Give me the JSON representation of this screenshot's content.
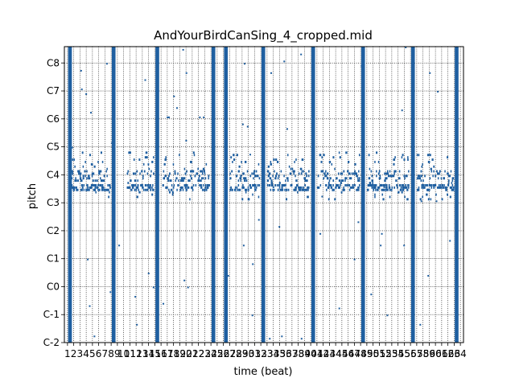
{
  "chart_data": {
    "type": "heatmap",
    "title": "AndYourBirdCanSing_4_cropped.mid",
    "xlabel": "time (beat)",
    "ylabel": "pitch",
    "xlim": [
      0.5,
      64.5
    ],
    "ylim": [
      0,
      127
    ],
    "x_ticks": [
      1,
      2,
      3,
      4,
      5,
      6,
      7,
      8,
      9,
      10,
      11,
      12,
      13,
      14,
      15,
      16,
      17,
      18,
      19,
      20,
      21,
      22,
      23,
      24,
      25,
      26,
      27,
      28,
      29,
      30,
      31,
      32,
      33,
      34,
      35,
      36,
      37,
      38,
      39,
      40,
      41,
      42,
      43,
      44,
      45,
      46,
      47,
      48,
      49,
      50,
      51,
      52,
      53,
      54,
      55,
      56,
      57,
      58,
      59,
      60,
      61,
      62,
      63,
      64
    ],
    "y_ticks": [
      {
        "pitch": 0,
        "label": "C-2"
      },
      {
        "pitch": 12,
        "label": "C-1"
      },
      {
        "pitch": 24,
        "label": "C0"
      },
      {
        "pitch": 36,
        "label": "C1"
      },
      {
        "pitch": 48,
        "label": "C2"
      },
      {
        "pitch": 60,
        "label": "C3"
      },
      {
        "pitch": 72,
        "label": "C4"
      },
      {
        "pitch": 84,
        "label": "C5"
      },
      {
        "pitch": 96,
        "label": "C6"
      },
      {
        "pitch": 108,
        "label": "C7"
      },
      {
        "pitch": 120,
        "label": "C8"
      }
    ],
    "grid": true,
    "note_color": "#1f5fa0",
    "full_range_beats": [
      {
        "start": 1.1,
        "end": 1.7
      },
      {
        "start": 8.1,
        "end": 8.7
      },
      {
        "start": 15.1,
        "end": 15.7
      },
      {
        "start": 24.1,
        "end": 24.7
      },
      {
        "start": 26.1,
        "end": 26.7
      },
      {
        "start": 32.1,
        "end": 32.7
      },
      {
        "start": 40.1,
        "end": 40.7
      },
      {
        "start": 48.1,
        "end": 48.7
      },
      {
        "start": 56.1,
        "end": 56.7
      },
      {
        "start": 63.1,
        "end": 63.7
      }
    ],
    "melody_regions": [
      {
        "start": 1.5,
        "end": 7.8
      },
      {
        "start": 10.5,
        "end": 14.8
      },
      {
        "start": 16.2,
        "end": 23.6
      },
      {
        "start": 27.0,
        "end": 31.8
      },
      {
        "start": 33.0,
        "end": 39.6
      },
      {
        "start": 41.0,
        "end": 47.8
      },
      {
        "start": 49.0,
        "end": 55.6
      },
      {
        "start": 57.0,
        "end": 62.8
      }
    ],
    "melody_pitch_range": [
      61,
      82
    ]
  }
}
